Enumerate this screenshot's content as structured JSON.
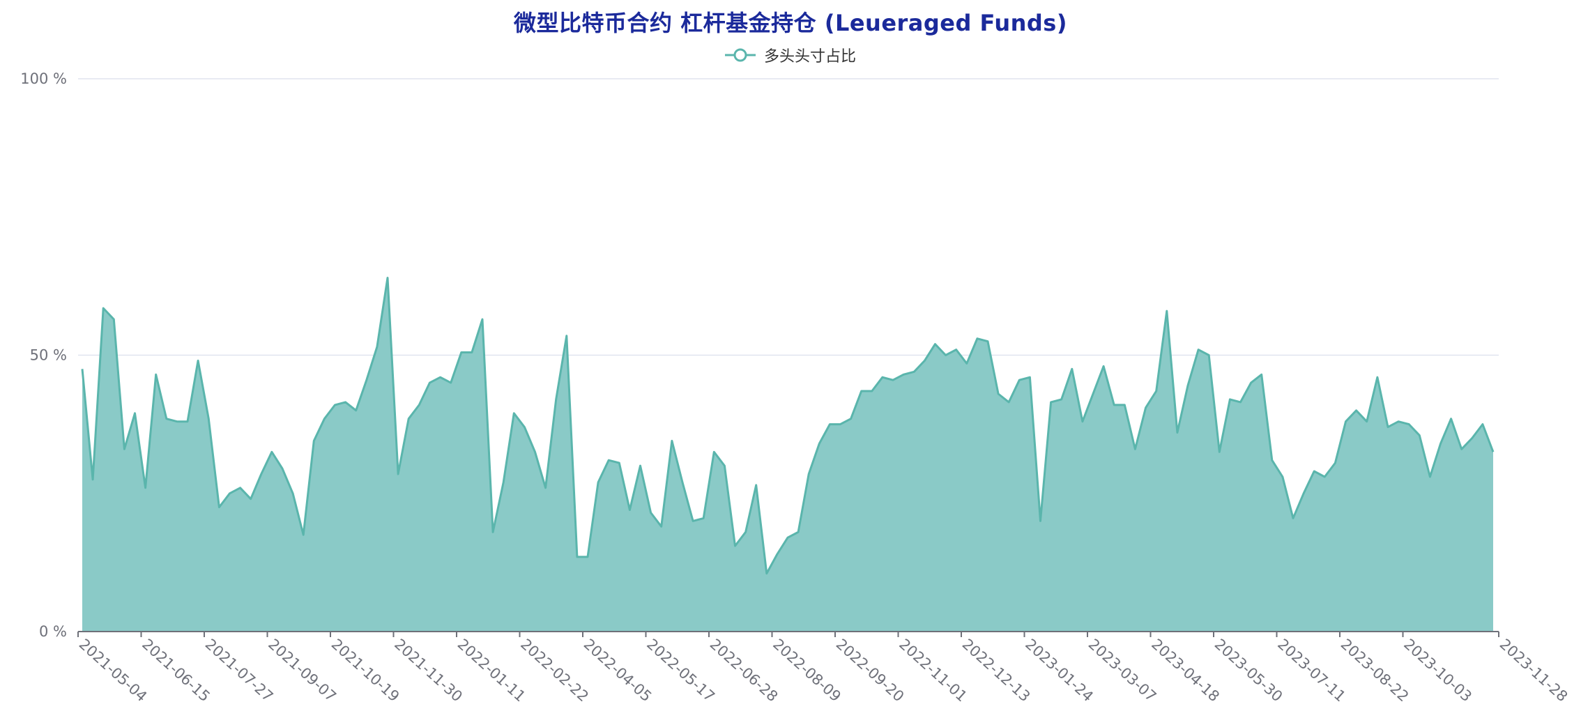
{
  "chart_data": {
    "type": "area",
    "title": "微型比特币合约 杠杆基金持仓 (Leueraged Funds)",
    "legend": [
      "多头头寸占比"
    ],
    "legend_position": "top-center",
    "y_tick_labels": [
      "0 %",
      "50 %",
      "100 %"
    ],
    "ylim": [
      0,
      100
    ],
    "x_tick_labels": [
      "2021-05-04",
      "2021-06-15",
      "2021-07-27",
      "2021-09-07",
      "2021-10-19",
      "2021-11-30",
      "2022-01-11",
      "2022-02-22",
      "2022-04-05",
      "2022-05-17",
      "2022-06-28",
      "2022-08-09",
      "2022-09-20",
      "2022-11-01",
      "2022-12-13",
      "2023-01-24",
      "2023-03-07",
      "2023-04-18",
      "2023-05-30",
      "2023-07-11",
      "2023-08-22",
      "2023-10-03",
      "2023-11-28"
    ],
    "grid": true,
    "series": [
      {
        "name": "多头头寸占比",
        "values": [
          47.5,
          27.5,
          58.5,
          56.5,
          33.0,
          39.5,
          26.0,
          46.5,
          38.5,
          38.0,
          38.0,
          49.0,
          38.5,
          22.5,
          25.0,
          26.0,
          24.0,
          28.5,
          32.5,
          29.5,
          25.0,
          17.5,
          34.5,
          38.5,
          41.0,
          41.5,
          40.0,
          45.5,
          51.5,
          64.0,
          28.5,
          38.5,
          41.0,
          45.0,
          46.0,
          45.0,
          50.5,
          50.5,
          56.5,
          18.0,
          27.0,
          39.5,
          37.0,
          32.5,
          26.0,
          42.0,
          53.5,
          13.5,
          13.5,
          27.0,
          31.0,
          30.5,
          22.0,
          30.0,
          21.5,
          19.0,
          34.5,
          27.0,
          20.0,
          20.5,
          32.5,
          30.0,
          15.5,
          18.0,
          26.5,
          10.5,
          14.0,
          17.0,
          18.0,
          28.5,
          34.0,
          37.5,
          37.5,
          38.5,
          43.5,
          43.5,
          46.0,
          45.5,
          46.5,
          47.0,
          49.0,
          52.0,
          50.0,
          51.0,
          48.5,
          53.0,
          52.5,
          43.0,
          41.5,
          45.5,
          46.0,
          20.0,
          41.5,
          42.0,
          47.5,
          38.0,
          43.0,
          48.0,
          41.0,
          41.0,
          33.0,
          40.5,
          43.5,
          58.0,
          36.0,
          44.5,
          51.0,
          50.0,
          32.5,
          42.0,
          41.5,
          45.0,
          46.5,
          31.0,
          28.0,
          20.5,
          25.0,
          29.0,
          28.0,
          30.5,
          38.0,
          40.0,
          38.0,
          46.0,
          37.0,
          38.0,
          37.5,
          35.5,
          28.0,
          34.0,
          38.5,
          33.0,
          35.0,
          37.5,
          32.5
        ]
      }
    ]
  },
  "colors": {
    "title": "#1b2a9b",
    "line": "#5ab5ac",
    "area": "#8acac7",
    "grid": "#e0e4ef",
    "axis": "#6e7079"
  }
}
